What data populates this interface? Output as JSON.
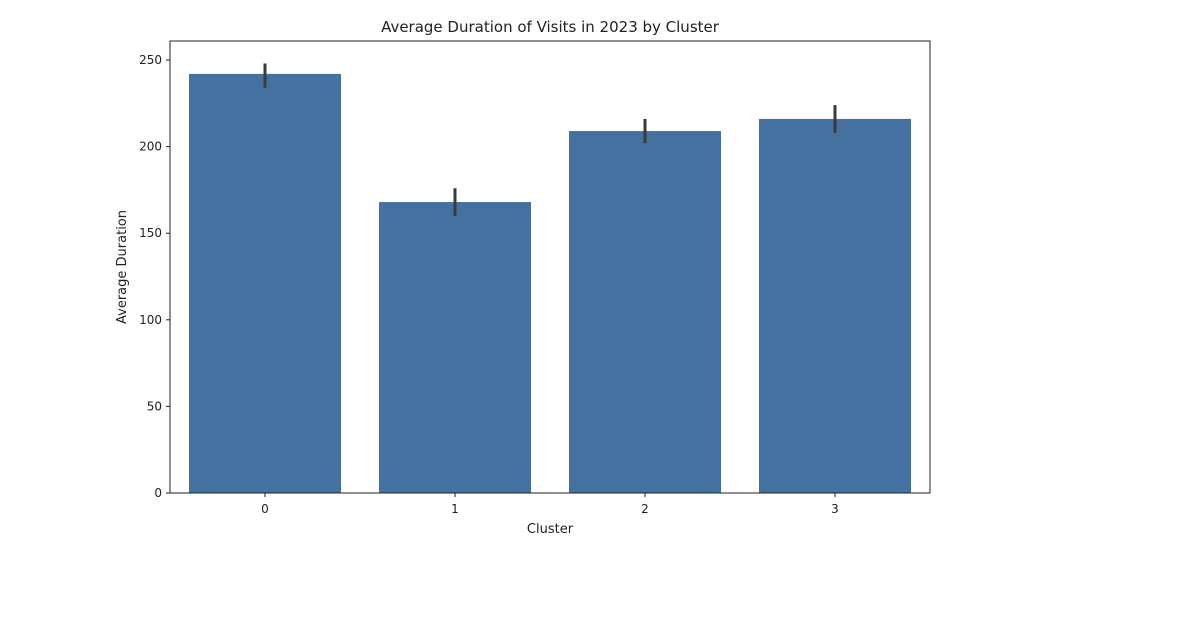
{
  "chart_data": {
    "type": "bar",
    "title": "Average Duration of Visits in 2023 by Cluster",
    "xlabel": "Cluster",
    "ylabel": "Average Duration",
    "categories": [
      "0",
      "1",
      "2",
      "3"
    ],
    "values": [
      242,
      168,
      209,
      216
    ],
    "error_bars": [
      {
        "low": 234,
        "high": 248
      },
      {
        "low": 160,
        "high": 176
      },
      {
        "low": 202,
        "high": 216
      },
      {
        "low": 208,
        "high": 224
      }
    ],
    "ylim": [
      0,
      261
    ],
    "yticks": [
      0,
      50,
      100,
      150,
      200,
      250
    ],
    "grid": false,
    "bar_color": "#4571a0",
    "error_color": "#3a3a3a"
  }
}
